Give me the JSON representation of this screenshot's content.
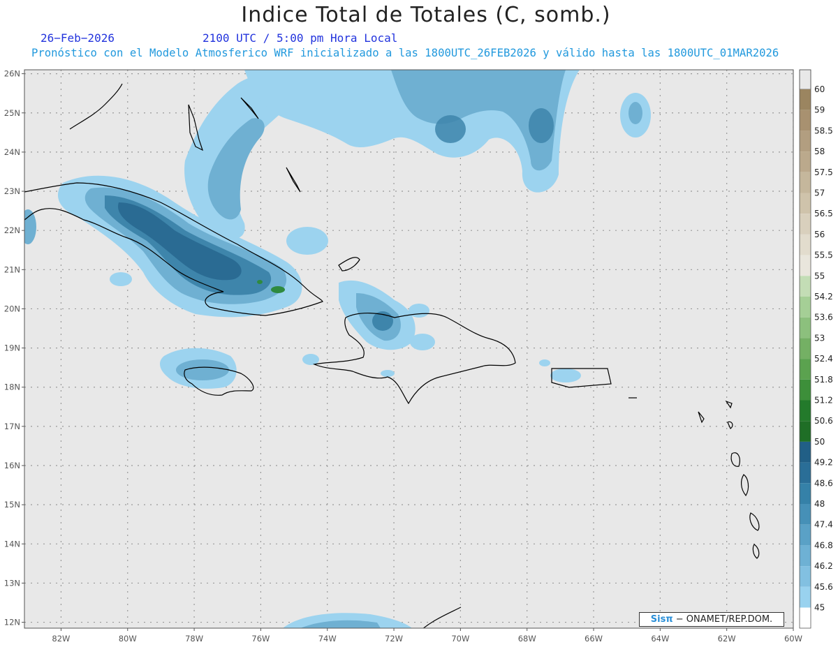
{
  "title": "Indice Total de Totales (C, somb.)",
  "date": "26−Feb−2026",
  "time": "2100 UTC / 5:00 pm Hora Local",
  "description": "Pronóstico con el Modelo Atmosferico WRF inicializado a las 1800UTC_26FEB2026 y válido hasta las  1800UTC_01MAR2026",
  "credit": {
    "logo": "Sisπ",
    "text": "− ONAMET/REP.DOM."
  },
  "map": {
    "lon_range": [
      -83.1,
      -60
    ],
    "lat_range": [
      11.85,
      26.1
    ],
    "x_ticks": [
      "82W",
      "80W",
      "78W",
      "76W",
      "74W",
      "72W",
      "70W",
      "68W",
      "66W",
      "64W",
      "62W",
      "60W"
    ],
    "y_ticks": [
      "12N",
      "13N",
      "14N",
      "15N",
      "16N",
      "17N",
      "18N",
      "19N",
      "20N",
      "21N",
      "22N",
      "23N",
      "24N",
      "25N",
      "26N"
    ]
  },
  "colorbar": {
    "labels": [
      "60",
      "59",
      "58.5",
      "58",
      "57.5",
      "57",
      "56.5",
      "56",
      "55.5",
      "55",
      "54.2",
      "53.6",
      "53",
      "52.4",
      "51.8",
      "51.2",
      "50.6",
      "50",
      "49.2",
      "48.6",
      "48",
      "47.4",
      "46.8",
      "46.2",
      "45.6",
      "45"
    ],
    "colors": [
      "#9b8560",
      "#a89170",
      "#b29e80",
      "#bba98c",
      "#c5b79c",
      "#cfc3ab",
      "#d9d0bd",
      "#e2dccd",
      "#e9e6dc",
      "#c3ddb5",
      "#a5cf96",
      "#8cc07d",
      "#74b064",
      "#5ba24f",
      "#3d8f3a",
      "#237a2b",
      "#1f6e26",
      "#215f86",
      "#2a6e97",
      "#3581a8",
      "#4690b7",
      "#5aa1c6",
      "#6eb1d4",
      "#82c0e1",
      "#99d2ef"
    ]
  },
  "colors": {
    "map_bg": "#e8e8e8",
    "light": "#9cd3ef",
    "mid": "#6fb0d2",
    "dark": "#3e85ab",
    "darker": "#2a6b93",
    "green": "#2f8a3f"
  }
}
